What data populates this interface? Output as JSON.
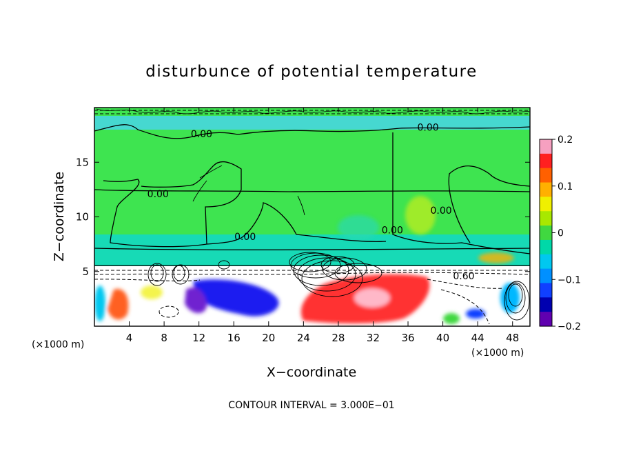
{
  "chart_data": {
    "type": "heatmap",
    "title": "disturbunce of potential temperature",
    "xlabel": "X−coordinate",
    "ylabel": "Z−coordinate",
    "x_unit": "(×1000 m)",
    "z_unit": "(×1000 m)",
    "xlim": [
      0,
      50
    ],
    "ylim": [
      0,
      20
    ],
    "x_ticks": [
      4,
      8,
      12,
      16,
      20,
      24,
      28,
      32,
      36,
      40,
      44,
      48
    ],
    "x_tick_labels": [
      "4",
      "8",
      "12",
      "16",
      "20",
      "24",
      "28",
      "32",
      "36",
      "40",
      "44",
      "48"
    ],
    "y_ticks": [
      5,
      10,
      15
    ],
    "y_tick_labels": [
      "5",
      "10",
      "15"
    ],
    "contour_interval_text": "CONTOUR INTERVAL = 3.000E−01",
    "contour_labels": [
      {
        "text": "0.00",
        "x": 12.3,
        "z": 17.6
      },
      {
        "text": "0.00",
        "x": 7.3,
        "z": 12.1
      },
      {
        "text": "0.00",
        "x": 17.3,
        "z": 8.2
      },
      {
        "text": "0.00",
        "x": 38.3,
        "z": 18.2
      },
      {
        "text": "0.00",
        "x": 34.2,
        "z": 8.8
      },
      {
        "text": "0.00",
        "x": 39.8,
        "z": 10.6
      },
      {
        "text": "0.60",
        "x": 42.4,
        "z": 4.6
      }
    ],
    "colorbar": {
      "min": -0.2,
      "max": 0.2,
      "tick_values": [
        0.2,
        0.1,
        0,
        -0.1,
        -0.2
      ],
      "tick_labels": [
        "0.2",
        "0.1",
        "0",
        "−0.1",
        "−0.2"
      ],
      "colors": [
        "#f6a0c0",
        "#ff2020",
        "#ff6000",
        "#ffb000",
        "#f0f000",
        "#a8e800",
        "#40d840",
        "#00d8a8",
        "#00c8f0",
        "#0090ff",
        "#1040ff",
        "#0000b0",
        "#6000b0"
      ]
    },
    "background_colors": {
      "upper_field": "#3ee450",
      "upper_band": "#00c8b4",
      "top_band": "#4cc8ff",
      "lower_field": "#ffffff",
      "neg_anomaly": "#1a1af0",
      "pos_anomaly": "#ff2828",
      "contour": "#000000"
    }
  }
}
